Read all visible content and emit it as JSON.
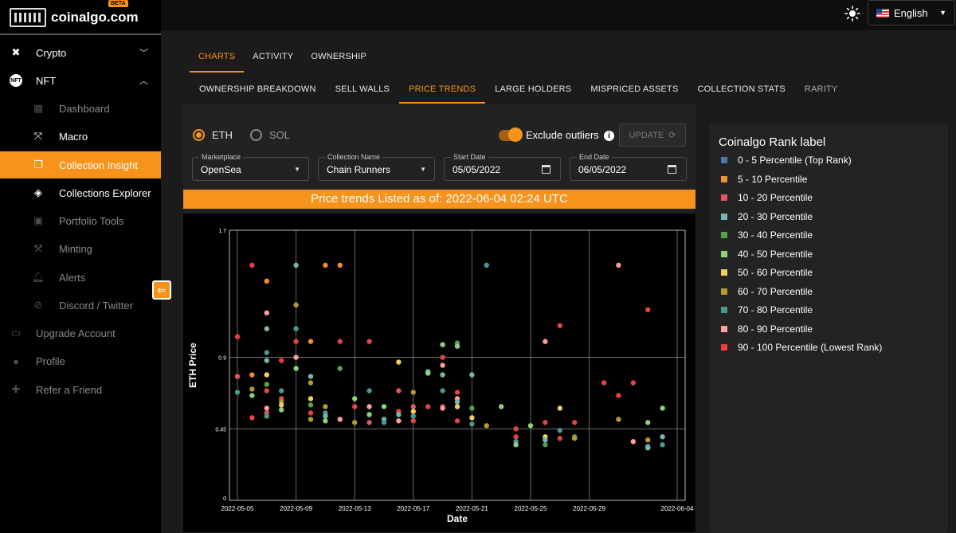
{
  "brand": {
    "name": "coinalgo.com",
    "badge": "BETA"
  },
  "sidebar": {
    "items": [
      {
        "label": "Crypto",
        "icon": "network-icon",
        "expanded": false
      },
      {
        "label": "NFT",
        "icon": "nft-icon",
        "expanded": true
      },
      {
        "label": "Dashboard",
        "icon": "dashboard-icon",
        "sub": true
      },
      {
        "label": "Macro",
        "icon": "expand-icon",
        "sub": true
      },
      {
        "label": "Collection Insight",
        "icon": "collection-icon",
        "sub": true,
        "active": true
      },
      {
        "label": "Collections Explorer",
        "icon": "compass-icon",
        "sub": true
      },
      {
        "label": "Portfolio Tools",
        "icon": "briefcase-icon",
        "sub": true
      },
      {
        "label": "Minting",
        "icon": "hammer-icon",
        "sub": true
      },
      {
        "label": "Alerts",
        "icon": "alert-icon",
        "sub": true
      },
      {
        "label": "Discord / Twitter",
        "icon": "social-search-icon",
        "sub": true
      },
      {
        "label": "Upgrade Account",
        "icon": "card-icon"
      },
      {
        "label": "Profile",
        "icon": "person-icon"
      },
      {
        "label": "Refer a Friend",
        "icon": "gift-icon"
      }
    ]
  },
  "header": {
    "language": "English"
  },
  "tabs": [
    "CHARTS",
    "ACTIVITY",
    "OWNERSHIP"
  ],
  "subtabs": [
    "OWNERSHIP BREAKDOWN",
    "SELL WALLS",
    "PRICE TRENDS",
    "LARGE HOLDERS",
    "MISPRICED ASSETS",
    "COLLECTION STATS",
    "RARITY"
  ],
  "controls": {
    "currency_options": [
      "ETH",
      "SOL"
    ],
    "selected_currency": "ETH",
    "exclude_outliers_label": "Exclude outliers",
    "exclude_outliers": true,
    "update_label": "UPDATE",
    "marketplace": {
      "label": "Marketplace",
      "value": "OpenSea"
    },
    "collection": {
      "label": "Collection Name",
      "value": "Chain Runners"
    },
    "start_date": {
      "label": "Start Date",
      "value": "05/05/2022"
    },
    "end_date": {
      "label": "End Date",
      "value": "06/05/2022"
    }
  },
  "banner": "Price trends Listed as of: 2022-06-04 02:24 UTC",
  "legend": {
    "title": "Coinalgo Rank label",
    "items": [
      {
        "label": "0 - 5 Percentile (Top Rank)",
        "color": "#4e79a7"
      },
      {
        "label": "5 - 10 Percentile",
        "color": "#f28e2b"
      },
      {
        "label": "10 - 20 Percentile",
        "color": "#e15759"
      },
      {
        "label": "20 - 30 Percentile",
        "color": "#76b7b2"
      },
      {
        "label": "30 - 40 Percentile",
        "color": "#59a14f"
      },
      {
        "label": "40 - 50 Percentile",
        "color": "#8cd17d"
      },
      {
        "label": "50 - 60 Percentile",
        "color": "#f1ce63"
      },
      {
        "label": "60 - 70 Percentile",
        "color": "#b6992d"
      },
      {
        "label": "70 - 80 Percentile",
        "color": "#499894"
      },
      {
        "label": "80 - 90 Percentile",
        "color": "#ff9d9a"
      },
      {
        "label": "90 - 100 Percentile (Lowest Rank)",
        "color": "#e8423f"
      }
    ]
  },
  "chart_data": {
    "type": "scatter",
    "xlabel": "Date",
    "ylabel": "ETH Price",
    "x_ticks": [
      "2022-05-05",
      "2022-05-09",
      "2022-05-13",
      "2022-05-17",
      "2022-05-21",
      "2022-05-25",
      "2022-05-29",
      "2022-06-04"
    ],
    "y_ticks": [
      0,
      0.45,
      0.9,
      1.7
    ],
    "ylim": [
      0,
      1.7
    ],
    "grid": true,
    "points": [
      [
        "2022-05-05",
        1.03,
        10
      ],
      [
        "2022-05-05",
        0.78,
        2
      ],
      [
        "2022-05-05",
        0.68,
        8
      ],
      [
        "2022-05-06",
        1.48,
        10
      ],
      [
        "2022-05-06",
        0.79,
        1
      ],
      [
        "2022-05-06",
        0.7,
        7
      ],
      [
        "2022-05-06",
        0.66,
        5
      ],
      [
        "2022-05-06",
        0.52,
        10
      ],
      [
        "2022-05-07",
        1.38,
        1
      ],
      [
        "2022-05-07",
        1.18,
        9
      ],
      [
        "2022-05-07",
        1.08,
        3
      ],
      [
        "2022-05-07",
        0.93,
        8
      ],
      [
        "2022-05-07",
        0.88,
        3
      ],
      [
        "2022-05-07",
        0.79,
        6
      ],
      [
        "2022-05-07",
        0.73,
        4
      ],
      [
        "2022-05-07",
        0.69,
        10
      ],
      [
        "2022-05-07",
        0.58,
        9
      ],
      [
        "2022-05-07",
        0.55,
        2
      ],
      [
        "2022-05-07",
        0.53,
        8
      ],
      [
        "2022-05-08",
        0.88,
        10
      ],
      [
        "2022-05-08",
        0.69,
        8
      ],
      [
        "2022-05-08",
        0.64,
        10
      ],
      [
        "2022-05-08",
        0.62,
        7
      ],
      [
        "2022-05-08",
        0.6,
        6
      ],
      [
        "2022-05-08",
        0.57,
        5
      ],
      [
        "2022-05-09",
        1.48,
        3
      ],
      [
        "2022-05-09",
        1.23,
        7
      ],
      [
        "2022-05-09",
        1.08,
        8
      ],
      [
        "2022-05-09",
        1.0,
        10
      ],
      [
        "2022-05-09",
        0.9,
        9
      ],
      [
        "2022-05-09",
        0.83,
        5
      ],
      [
        "2022-05-10",
        1.0,
        1
      ],
      [
        "2022-05-10",
        0.78,
        3
      ],
      [
        "2022-05-10",
        0.74,
        7
      ],
      [
        "2022-05-10",
        0.64,
        6
      ],
      [
        "2022-05-10",
        0.6,
        4
      ],
      [
        "2022-05-10",
        0.55,
        10
      ],
      [
        "2022-05-10",
        0.51,
        7
      ],
      [
        "2022-05-11",
        1.48,
        1
      ],
      [
        "2022-05-11",
        0.59,
        7
      ],
      [
        "2022-05-11",
        0.55,
        8
      ],
      [
        "2022-05-11",
        0.53,
        3
      ],
      [
        "2022-05-11",
        0.5,
        5
      ],
      [
        "2022-05-12",
        1.48,
        1
      ],
      [
        "2022-05-12",
        1.0,
        10
      ],
      [
        "2022-05-12",
        0.83,
        4
      ],
      [
        "2022-05-12",
        0.51,
        9
      ],
      [
        "2022-05-13",
        0.64,
        5
      ],
      [
        "2022-05-13",
        0.59,
        10
      ],
      [
        "2022-05-13",
        0.49,
        7
      ],
      [
        "2022-05-14",
        1.0,
        10
      ],
      [
        "2022-05-14",
        0.69,
        8
      ],
      [
        "2022-05-14",
        0.59,
        9
      ],
      [
        "2022-05-14",
        0.54,
        5
      ],
      [
        "2022-05-14",
        0.49,
        2
      ],
      [
        "2022-05-15",
        0.59,
        5
      ],
      [
        "2022-05-15",
        0.51,
        3
      ],
      [
        "2022-05-15",
        0.49,
        8
      ],
      [
        "2022-05-16",
        0.87,
        6
      ],
      [
        "2022-05-16",
        0.69,
        2
      ],
      [
        "2022-05-16",
        0.56,
        10
      ],
      [
        "2022-05-16",
        0.54,
        3
      ],
      [
        "2022-05-16",
        0.5,
        9
      ],
      [
        "2022-05-17",
        0.68,
        7
      ],
      [
        "2022-05-17",
        0.59,
        2
      ],
      [
        "2022-05-17",
        0.56,
        6
      ],
      [
        "2022-05-17",
        0.53,
        8
      ],
      [
        "2022-05-17",
        0.5,
        10
      ],
      [
        "2022-05-18",
        0.81,
        3
      ],
      [
        "2022-05-18",
        0.8,
        5
      ],
      [
        "2022-05-18",
        0.59,
        10
      ],
      [
        "2022-05-19",
        0.98,
        5
      ],
      [
        "2022-05-19",
        0.9,
        10
      ],
      [
        "2022-05-19",
        0.85,
        9
      ],
      [
        "2022-05-19",
        0.79,
        3
      ],
      [
        "2022-05-19",
        0.69,
        8
      ],
      [
        "2022-05-19",
        0.59,
        10
      ],
      [
        "2022-05-19",
        0.58,
        9
      ],
      [
        "2022-05-20",
        0.99,
        4
      ],
      [
        "2022-05-20",
        0.97,
        5
      ],
      [
        "2022-05-20",
        0.68,
        10
      ],
      [
        "2022-05-20",
        0.64,
        9
      ],
      [
        "2022-05-20",
        0.62,
        3
      ],
      [
        "2022-05-20",
        0.59,
        6
      ],
      [
        "2022-05-20",
        0.5,
        10
      ],
      [
        "2022-05-21",
        0.79,
        3
      ],
      [
        "2022-05-21",
        0.58,
        4
      ],
      [
        "2022-05-21",
        0.52,
        6
      ],
      [
        "2022-05-21",
        0.48,
        8
      ],
      [
        "2022-05-22",
        1.48,
        8
      ],
      [
        "2022-05-22",
        0.47,
        7
      ],
      [
        "2022-05-23",
        0.59,
        5
      ],
      [
        "2022-05-24",
        0.45,
        10
      ],
      [
        "2022-05-24",
        0.4,
        10
      ],
      [
        "2022-05-24",
        0.37,
        8
      ],
      [
        "2022-05-24",
        0.35,
        5
      ],
      [
        "2022-05-25",
        0.47,
        5
      ],
      [
        "2022-05-26",
        1.0,
        9
      ],
      [
        "2022-05-26",
        0.49,
        10
      ],
      [
        "2022-05-26",
        0.4,
        6
      ],
      [
        "2022-05-26",
        0.38,
        3
      ],
      [
        "2022-05-26",
        0.35,
        4
      ],
      [
        "2022-05-27",
        1.1,
        10
      ],
      [
        "2022-05-27",
        0.58,
        6
      ],
      [
        "2022-05-27",
        0.44,
        8
      ],
      [
        "2022-05-27",
        0.39,
        10
      ],
      [
        "2022-05-28",
        0.49,
        10
      ],
      [
        "2022-05-28",
        0.4,
        4
      ],
      [
        "2022-05-28",
        0.39,
        7
      ],
      [
        "2022-05-30",
        0.74,
        10
      ],
      [
        "2022-05-31",
        1.48,
        9
      ],
      [
        "2022-05-31",
        0.66,
        10
      ],
      [
        "2022-05-31",
        0.51,
        7
      ],
      [
        "2022-06-01",
        0.74,
        10
      ],
      [
        "2022-06-01",
        0.37,
        9
      ],
      [
        "2022-06-02",
        1.2,
        10
      ],
      [
        "2022-06-02",
        0.49,
        5
      ],
      [
        "2022-06-02",
        0.38,
        7
      ],
      [
        "2022-06-02",
        0.34,
        8
      ],
      [
        "2022-06-02",
        0.33,
        3
      ],
      [
        "2022-06-03",
        0.58,
        5
      ],
      [
        "2022-06-03",
        0.4,
        3
      ],
      [
        "2022-06-03",
        0.35,
        8
      ]
    ]
  }
}
